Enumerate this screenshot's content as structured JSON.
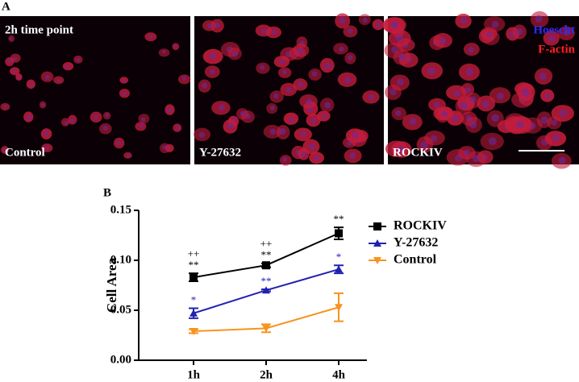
{
  "panel_a": {
    "label": "A",
    "time_label": "2h time point",
    "stain_labels": [
      {
        "text": "Hoescht",
        "color": "#2b2bff"
      },
      {
        "text": "F-actin",
        "color": "#ff2020"
      }
    ],
    "captions": [
      "Control",
      "Y-27632",
      "ROCKIV"
    ]
  },
  "chart_data": {
    "type": "line",
    "panel_label": "B",
    "y_label": "Cell Area",
    "categories": [
      "1h",
      "2h",
      "4h"
    ],
    "ylim": [
      0,
      0.15
    ],
    "yticks": [
      {
        "value": 0,
        "label": "0.00"
      },
      {
        "value": 0.05,
        "label": "0.05"
      },
      {
        "value": 0.1,
        "label": "0.10"
      },
      {
        "value": 0.15,
        "label": "0.15"
      }
    ],
    "series": [
      {
        "name": "ROCKIV",
        "color": "#000000",
        "marker": "square",
        "values": [
          0.083,
          0.095,
          0.127
        ],
        "errors": [
          0.004,
          0.002,
          0.006
        ],
        "significance": [
          "**",
          "**",
          "**"
        ],
        "significance_vs_y27632": [
          "++",
          "++",
          null
        ]
      },
      {
        "name": "Y-27632",
        "color": "#2222b0",
        "marker": "triangle",
        "values": [
          0.047,
          0.07,
          0.091
        ],
        "errors": [
          0.005,
          0.001,
          0.004
        ],
        "significance": [
          "*",
          "**",
          "*"
        ]
      },
      {
        "name": "Control",
        "color": "#f7931e",
        "marker": "triangle-down",
        "values": [
          0.029,
          0.032,
          0.053
        ],
        "errors": [
          0.002,
          0.004,
          0.014
        ]
      }
    ]
  }
}
